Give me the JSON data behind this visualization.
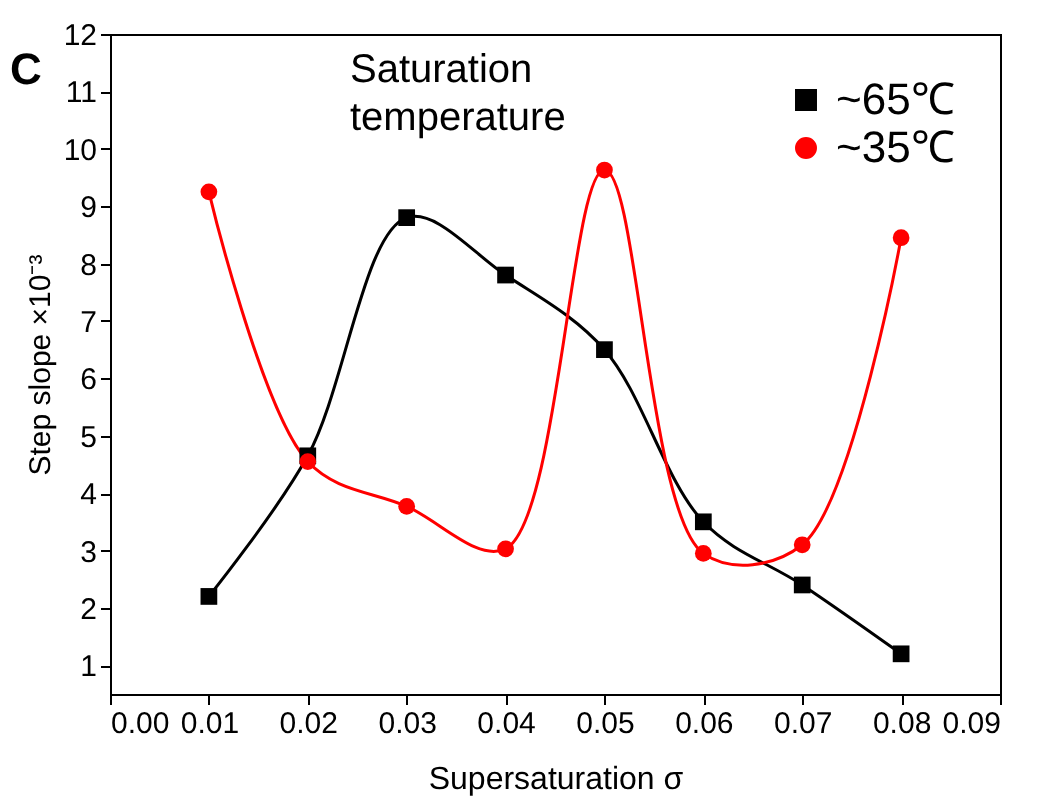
{
  "chart_data": {
    "type": "line",
    "xlabel": "Supersaturation  σ",
    "ylabel": "Step slope ×10⁻³",
    "legend_title": "Saturation temperature",
    "annotations": [
      "C"
    ],
    "x": [
      0.01,
      0.02,
      0.03,
      0.04,
      0.05,
      0.06,
      0.07,
      0.08
    ],
    "series": [
      {
        "name": "~65℃",
        "color": "#000000",
        "marker": "square",
        "values": [
          2.2,
          4.65,
          8.8,
          7.8,
          6.5,
          3.5,
          2.4,
          1.2
        ]
      },
      {
        "name": "~35℃",
        "color": "#ff0000",
        "marker": "circle",
        "values": [
          9.25,
          4.55,
          3.77,
          3.03,
          9.63,
          2.95,
          3.1,
          8.45
        ]
      }
    ],
    "xlim": [
      0,
      0.09
    ],
    "xticks": [
      {
        "value": 0,
        "label": "0.00"
      },
      {
        "value": 0.01,
        "label": "0.01"
      },
      {
        "value": 0.02,
        "label": "0.02"
      },
      {
        "value": 0.03,
        "label": "0.03"
      },
      {
        "value": 0.04,
        "label": "0.04"
      },
      {
        "value": 0.05,
        "label": "0.05"
      },
      {
        "value": 0.06,
        "label": "0.06"
      },
      {
        "value": 0.07,
        "label": "0.07"
      },
      {
        "value": 0.08,
        "label": "0.08"
      },
      {
        "value": 0.09,
        "label": "0.09"
      }
    ],
    "ylim": [
      0.5,
      12
    ],
    "yticks": [
      1,
      2,
      3,
      4,
      5,
      6,
      7,
      8,
      9,
      10,
      11,
      12
    ],
    "grid": false,
    "legend": "top right",
    "line_style": "solid"
  }
}
